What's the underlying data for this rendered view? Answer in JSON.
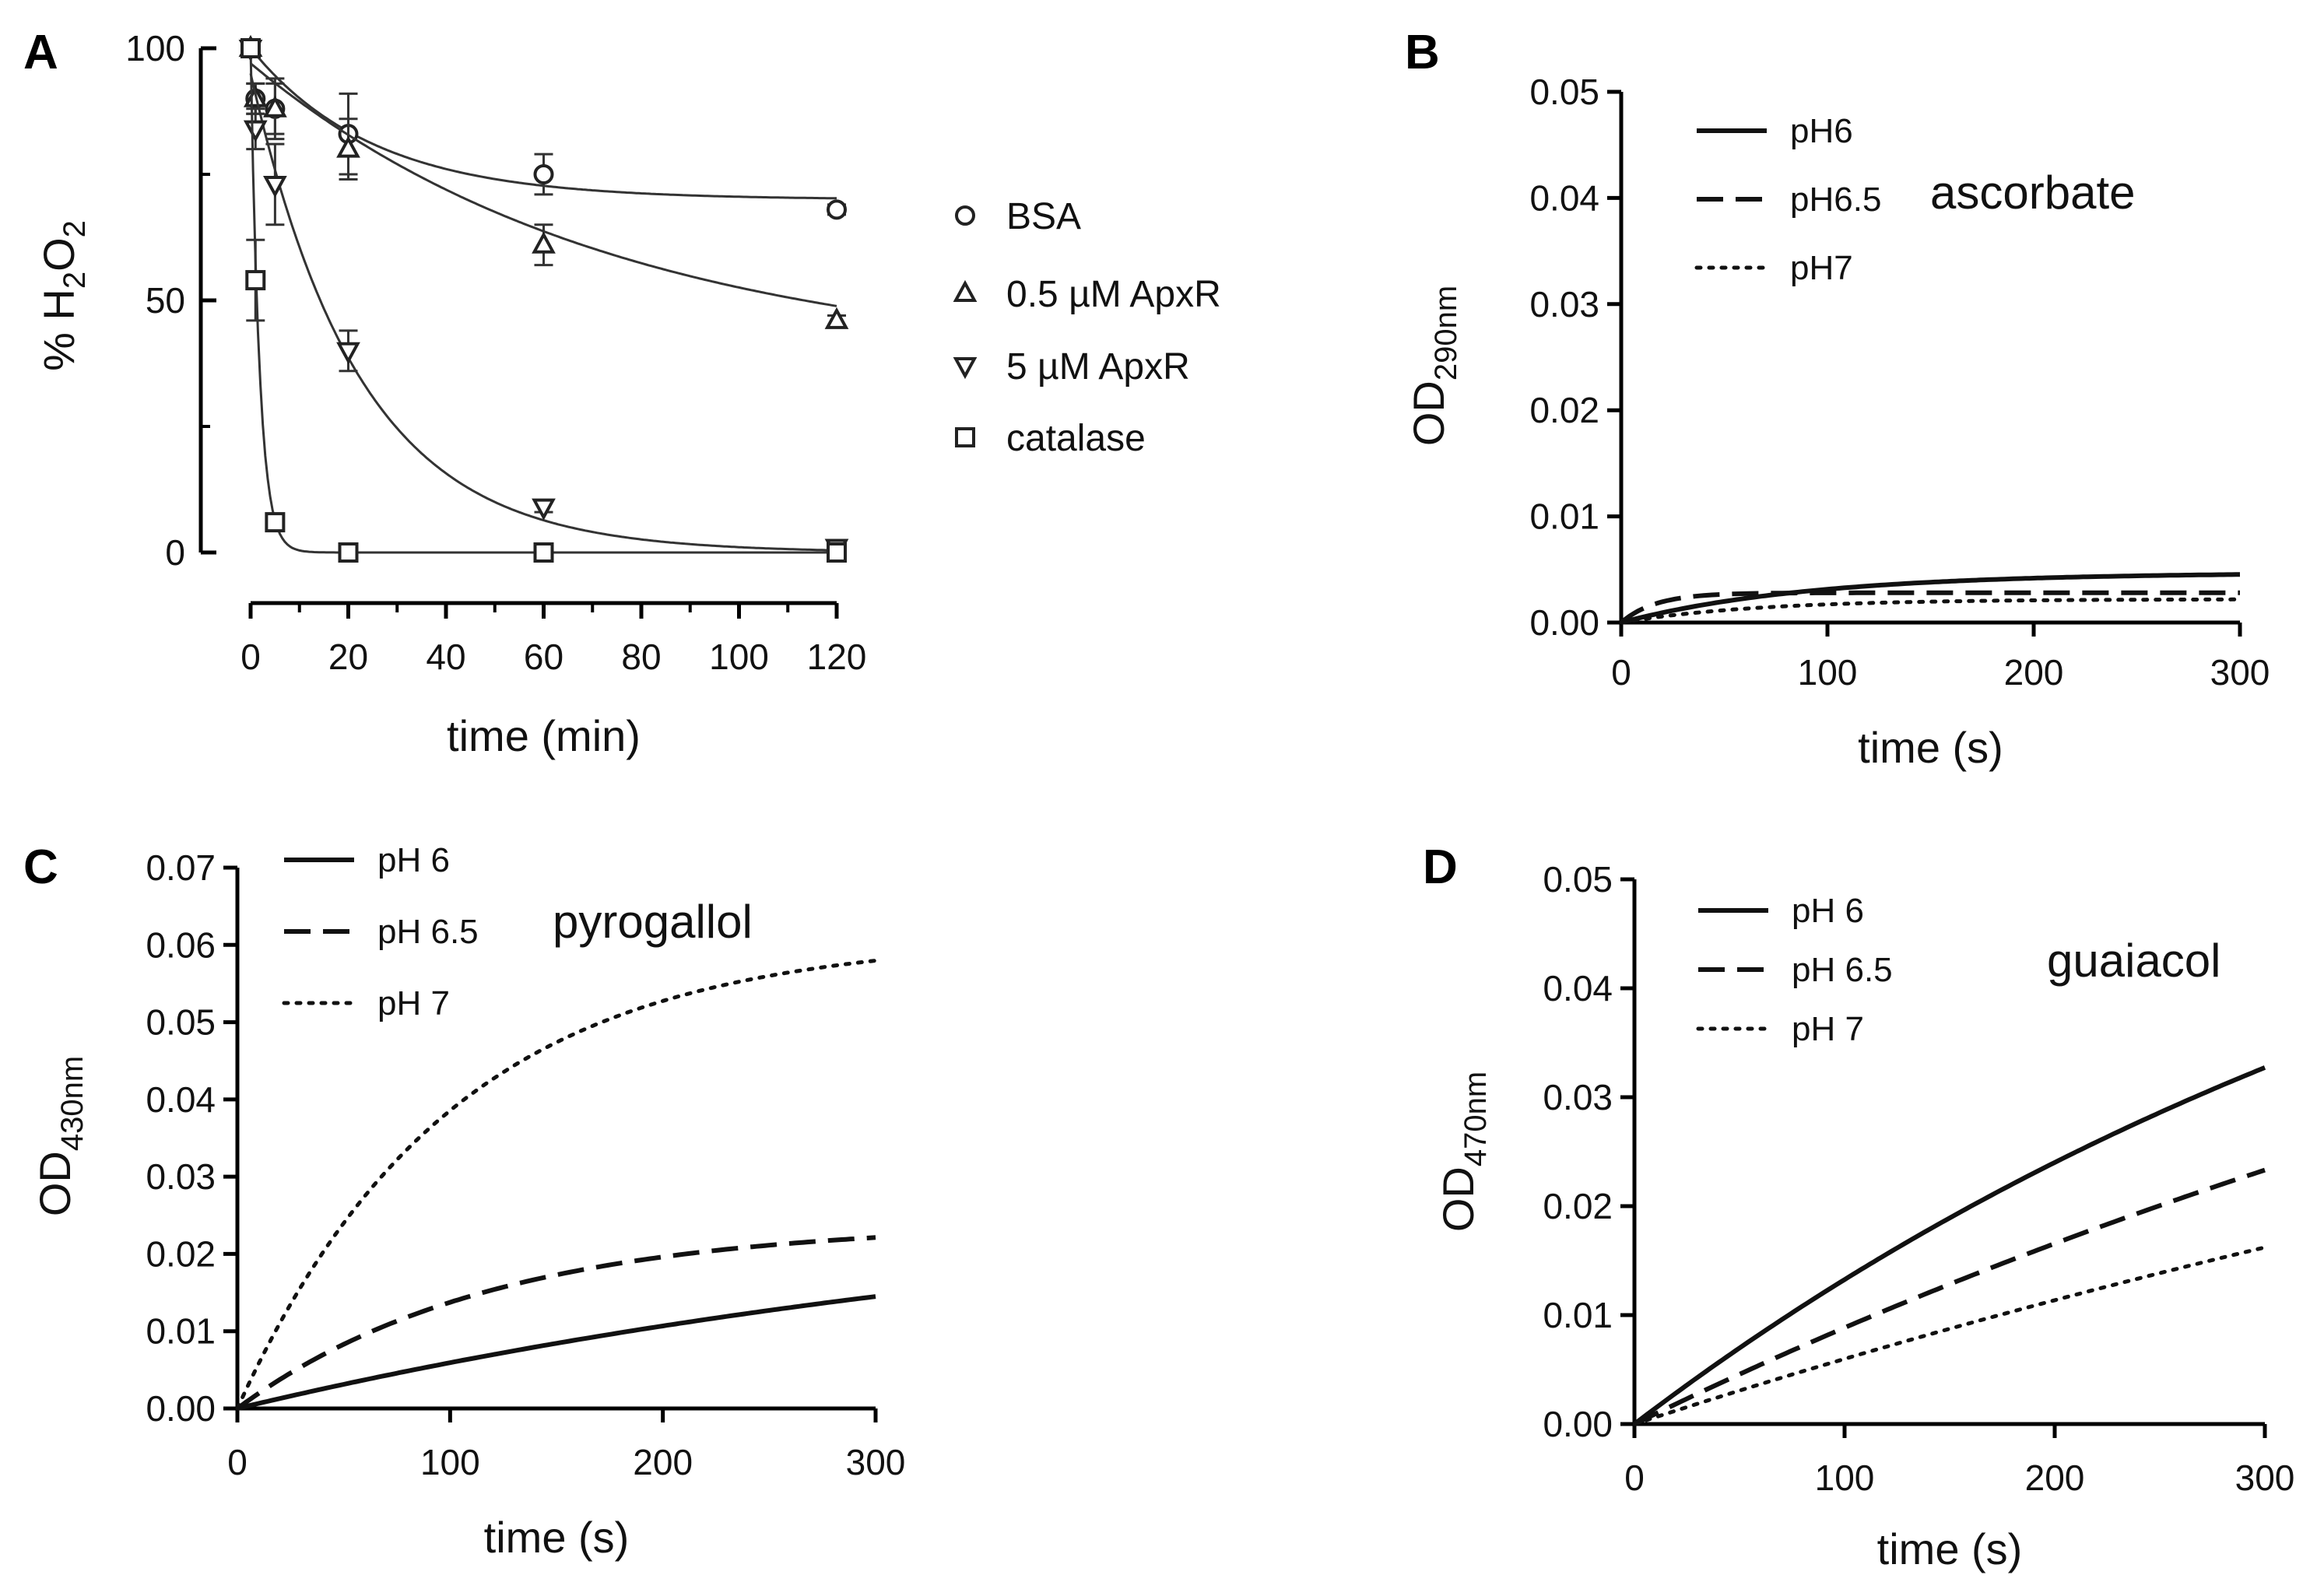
{
  "chart_data": [
    {
      "panel": "A",
      "type": "scatter",
      "xlabel": "time (min)",
      "ylabel": "% H",
      "ylabel_sub1": "2",
      "ylabel_mid": "O",
      "ylabel_sub2": "2",
      "xlim": [
        0,
        120
      ],
      "ylim": [
        0,
        100
      ],
      "xticks": [
        "0",
        "20",
        "40",
        "60",
        "80",
        "100",
        "120"
      ],
      "yticks": [
        "0",
        "50",
        "100"
      ],
      "legend_position": "right",
      "series": [
        {
          "name": "BSA",
          "marker": "circle",
          "x": [
            0,
            1,
            5,
            20,
            60,
            120
          ],
          "y": [
            100,
            90,
            88,
            83,
            75,
            68
          ],
          "err": [
            0,
            3,
            5,
            8,
            4,
            1
          ],
          "fit": {
            "a": 30,
            "k": 0.04,
            "c": 70
          }
        },
        {
          "name": "0.5 µM ApxR",
          "marker": "triangle-up",
          "x": [
            0,
            1,
            5,
            20,
            60,
            120
          ],
          "y": [
            100,
            90,
            88,
            80,
            61,
            46
          ],
          "err": [
            0,
            3,
            6,
            6,
            4,
            1
          ],
          "fit": {
            "a": 60,
            "k": 0.0135,
            "c": 37
          }
        },
        {
          "name": "5 µM ApxR",
          "marker": "triangle-down",
          "x": [
            0,
            1,
            5,
            20,
            60,
            120
          ],
          "y": [
            100,
            84,
            73,
            40,
            9,
            1
          ],
          "err": [
            0,
            4,
            8,
            4,
            1,
            0
          ],
          "fit": {
            "a": 95,
            "k": 0.045,
            "c": 0
          }
        },
        {
          "name": "catalase",
          "marker": "square",
          "x": [
            0,
            1,
            5,
            20,
            60,
            120
          ],
          "y": [
            100,
            54,
            6,
            0,
            0,
            0
          ],
          "err": [
            0,
            8,
            1,
            0,
            0,
            0
          ],
          "fit": {
            "a": 100,
            "k": 0.55,
            "c": 0
          }
        }
      ]
    },
    {
      "panel": "B",
      "type": "line",
      "xlabel": "time (s)",
      "ylabel": "OD",
      "ylabel_sub": "290nm",
      "xlim": [
        0,
        300
      ],
      "ylim": [
        0,
        0.05
      ],
      "xticks": [
        "0",
        "100",
        "200",
        "300"
      ],
      "yticks": [
        "0.00",
        "0.01",
        "0.02",
        "0.03",
        "0.04",
        "0.05"
      ],
      "annotation": "ascorbate",
      "legend_position": "top-left",
      "series": [
        {
          "name": "pH6",
          "style": "solid",
          "plateau": 0.0047,
          "k": 0.011
        },
        {
          "name": "pH6.5",
          "style": "dashed",
          "plateau": 0.0028,
          "k": 0.06
        },
        {
          "name": "pH7",
          "style": "dotted",
          "plateau": 0.0022,
          "k": 0.015
        }
      ]
    },
    {
      "panel": "C",
      "type": "line",
      "xlabel": "time (s)",
      "ylabel": "OD",
      "ylabel_sub": "430nm",
      "xlim": [
        0,
        300
      ],
      "ylim": [
        0,
        0.07
      ],
      "xticks": [
        "0",
        "100",
        "200",
        "300"
      ],
      "yticks": [
        "0.00",
        "0.01",
        "0.02",
        "0.03",
        "0.04",
        "0.05",
        "0.06",
        "0.07"
      ],
      "annotation": "pyrogallol",
      "legend_position": "top-left",
      "series": [
        {
          "name": "pH 6",
          "style": "solid",
          "plateau": 0.03,
          "k": 0.0022
        },
        {
          "name": "pH 6.5",
          "style": "dashed",
          "plateau": 0.024,
          "k": 0.0085
        },
        {
          "name": "pH 7",
          "style": "dotted",
          "plateau": 0.061,
          "k": 0.01
        }
      ]
    },
    {
      "panel": "D",
      "type": "line",
      "xlabel": "time (s)",
      "ylabel": "OD",
      "ylabel_sub": "470nm",
      "xlim": [
        0,
        300
      ],
      "ylim": [
        0,
        0.05
      ],
      "xticks": [
        "0",
        "100",
        "200",
        "300"
      ],
      "yticks": [
        "0.00",
        "0.01",
        "0.02",
        "0.03",
        "0.04",
        "0.05"
      ],
      "annotation": "guaiacol",
      "legend_position": "top-left",
      "series": [
        {
          "name": "pH 6",
          "style": "solid",
          "plateau": 0.07,
          "k": 0.0021
        },
        {
          "name": "pH 6.5",
          "style": "dashed",
          "plateau": 0.07,
          "k": 0.00135
        },
        {
          "name": "pH 7",
          "style": "dotted",
          "plateau": 0.06,
          "k": 0.00105
        }
      ]
    }
  ]
}
